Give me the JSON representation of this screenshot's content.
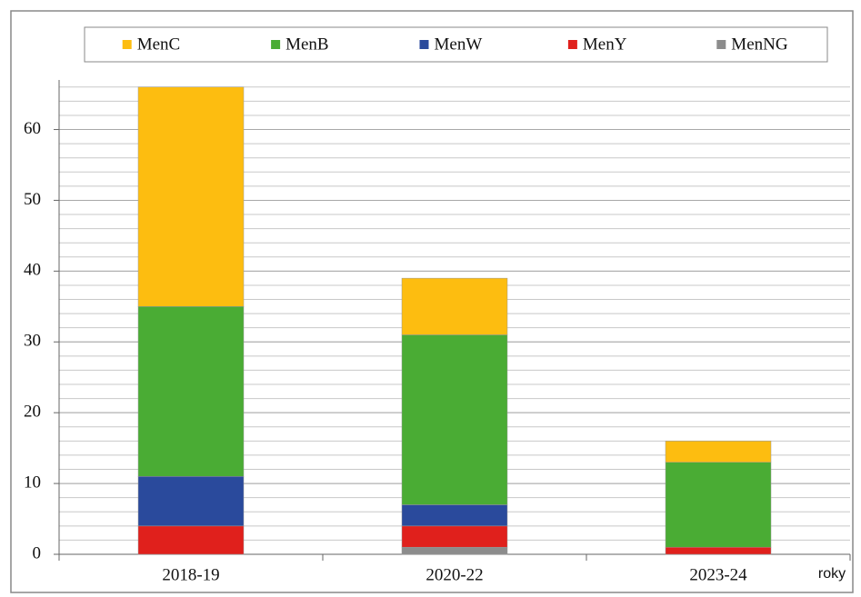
{
  "chart_data": {
    "type": "stacked_bar",
    "x_label": "roky",
    "categories": [
      "2018-19",
      "2020-22",
      "2023-24"
    ],
    "series": [
      {
        "name": "MenC",
        "color": "#fdbd10",
        "values": [
          31,
          8,
          3
        ]
      },
      {
        "name": "MenB",
        "color": "#4aac34",
        "values": [
          24,
          24,
          12
        ]
      },
      {
        "name": "MenW",
        "color": "#2a4a9c",
        "values": [
          7,
          3,
          0
        ]
      },
      {
        "name": "MenY",
        "color": "#e0201c",
        "values": [
          4,
          3,
          1
        ]
      },
      {
        "name": "MenNG",
        "color": "#8c8c8c",
        "values": [
          0,
          1,
          0
        ]
      }
    ],
    "ylim": [
      0,
      67
    ],
    "yticks": [
      0,
      10,
      20,
      30,
      40,
      50,
      60
    ],
    "grid": true,
    "minor_grid_step": 2,
    "legend": "top"
  }
}
